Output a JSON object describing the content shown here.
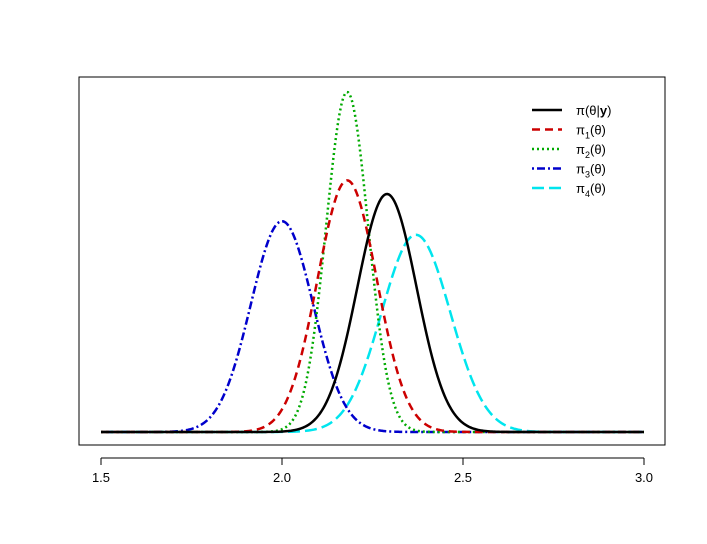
{
  "chart_data": {
    "type": "line",
    "title": "",
    "xlabel": "",
    "ylabel": "",
    "xlim": [
      1.5,
      3.0
    ],
    "ylim": [
      0,
      1
    ],
    "x_ticks": [
      "1.5",
      "2.0",
      "2.5",
      "3.0"
    ],
    "y_ticks_shown": false,
    "grid": false,
    "legend_position": "top-right",
    "series": [
      {
        "name": "π(θ|y)",
        "label_main": "π(θ|",
        "label_bold": "y",
        "label_tail": ")",
        "color": "#000000",
        "dash": "solid",
        "mean": 2.29,
        "sd": 0.082,
        "peak": 0.7
      },
      {
        "name": "π1(θ)",
        "label_main": "π",
        "label_sub": "1",
        "label_tail": "(θ)",
        "color": "#cc0000",
        "dash": "dashed",
        "mean": 2.18,
        "sd": 0.082,
        "peak": 0.74
      },
      {
        "name": "π2(θ)",
        "label_main": "π",
        "label_sub": "2",
        "label_tail": "(θ)",
        "color": "#00aa00",
        "dash": "dotted",
        "mean": 2.18,
        "sd": 0.058,
        "peak": 1.0
      },
      {
        "name": "π3(θ)",
        "label_main": "π",
        "label_sub": "3",
        "label_tail": "(θ)",
        "color": "#0000cc",
        "dash": "dotdash",
        "mean": 2.0,
        "sd": 0.086,
        "peak": 0.62
      },
      {
        "name": "π4(θ)",
        "label_main": "π",
        "label_sub": "4",
        "label_tail": "(θ)",
        "color": "#00e5ee",
        "dash": "longdash",
        "mean": 2.37,
        "sd": 0.095,
        "peak": 0.58
      }
    ]
  }
}
